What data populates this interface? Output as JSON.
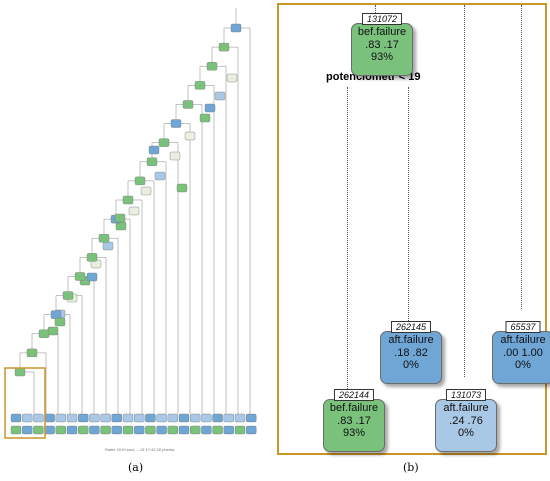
{
  "captions": {
    "a": "(a)",
    "b": "(b)"
  },
  "colors": {
    "green": "#7ac27c",
    "blue_strong": "#6fa6d6",
    "blue_light": "#a9c8e6",
    "frame": "#c9962a"
  },
  "panel_b": {
    "split_label": "potenciometr < 19",
    "nodes": [
      {
        "id": "131072",
        "label": "bef.failure",
        "probs": ".83  .17",
        "pct": "93%",
        "color": "green"
      },
      {
        "id": "262145",
        "label": "aft.failure",
        "probs": ".18  .82",
        "pct": "0%",
        "color": "blue_strong"
      },
      {
        "id": "65537",
        "label": "aft.failure",
        "probs": ".00  1.00",
        "pct": "0%",
        "color": "blue_strong"
      },
      {
        "id": "262144",
        "label": "bef.failure",
        "probs": ".83  .17",
        "pct": "93%",
        "color": "green"
      },
      {
        "id": "131073",
        "label": "aft.failure",
        "probs": ".24  .76",
        "pct": "0%",
        "color": "blue_light"
      }
    ]
  },
  "panel_a": {
    "watermark": "Rattle 2019-stud. – 15 17:42:35 pberka"
  }
}
